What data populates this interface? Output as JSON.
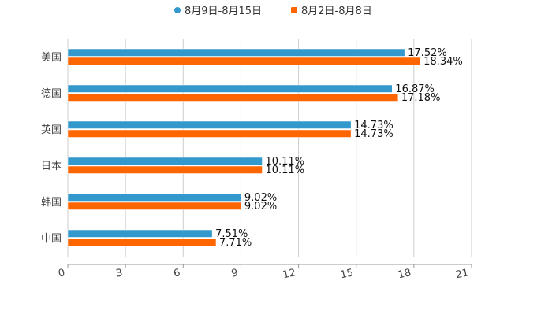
{
  "chart_data": {
    "type": "bar",
    "orientation": "horizontal",
    "title": "",
    "xlabel": "",
    "ylabel": "",
    "categories": [
      "美国",
      "德国",
      "英国",
      "日本",
      "韩国",
      "中国"
    ],
    "series": [
      {
        "name": "8月9日-8月15日",
        "color": "#3399cc",
        "values": [
          17.52,
          16.87,
          14.73,
          10.11,
          9.02,
          7.51
        ],
        "labels": [
          "17.52%",
          "16.87%",
          "14.73%",
          "10.11%",
          "9.02%",
          "7.51%"
        ]
      },
      {
        "name": "8月2日-8月8日",
        "color": "#ff6600",
        "values": [
          18.34,
          17.18,
          14.73,
          10.11,
          9.02,
          7.71
        ],
        "labels": [
          "18.34%",
          "17.18%",
          "14.73%",
          "10.11%",
          "9.02%",
          "7.71%"
        ]
      }
    ],
    "xlim": [
      0,
      21
    ],
    "xticks": [
      "0",
      "3",
      "6",
      "9",
      "12",
      "15",
      "18",
      "21"
    ],
    "grid": true,
    "legend_position": "top-center"
  }
}
